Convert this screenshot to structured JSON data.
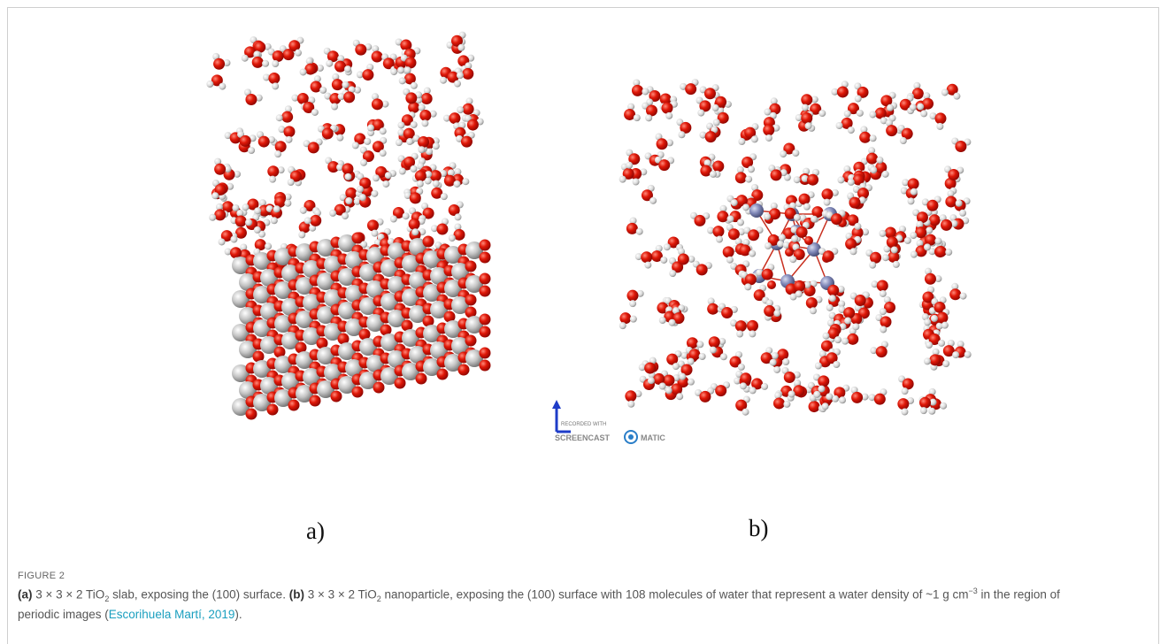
{
  "figure": {
    "panel_labels": [
      "a)",
      "b)"
    ],
    "watermark": {
      "line1": "RECORDED WITH",
      "left": "SCREENCAST",
      "right": "MATIC"
    },
    "caption": {
      "label": "FIGURE 2",
      "parts": [
        "(a)",
        " 3 × 3 × 2 TiO",
        "2",
        " slab, exposing the (100) surface. ",
        "(b)",
        " 3 × 3 × 2 TiO",
        "2",
        " nanoparticle, exposing the (100) surface with 108 molecules of water that represent a water density of ~1 g cm",
        "−3",
        " in the region of periodic images (",
        "Escorihuela Martí, 2019",
        ")."
      ]
    }
  }
}
